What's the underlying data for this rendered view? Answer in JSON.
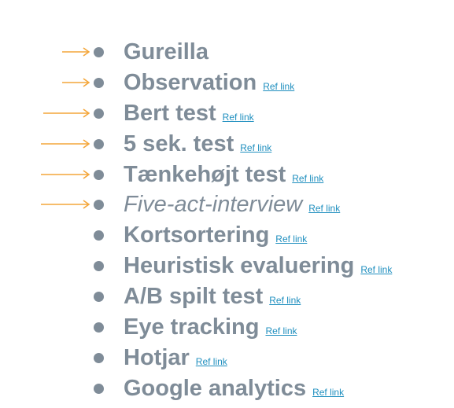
{
  "colors": {
    "text": "#7f8c98",
    "bullet": "#7f8c98",
    "link": "#1f8fbf",
    "arrow": "#f4a63a"
  },
  "items": [
    {
      "label": "Gureilla",
      "italic": false,
      "ref": "",
      "arrow": true
    },
    {
      "label": "Observation",
      "italic": false,
      "ref": "Ref link",
      "arrow": true
    },
    {
      "label": "Bert test",
      "italic": false,
      "ref": "Ref link",
      "arrow": true
    },
    {
      "label": "5 sek. test",
      "italic": false,
      "ref": "Ref link",
      "arrow": true
    },
    {
      "label": "Tænkehøjt test",
      "italic": false,
      "ref": "Ref link",
      "arrow": true
    },
    {
      "label": "Five-act-interview",
      "italic": true,
      "ref": "Ref link",
      "arrow": true
    },
    {
      "label": "Kortsortering",
      "italic": false,
      "ref": "Ref link",
      "arrow": false
    },
    {
      "label": "Heuristisk evaluering",
      "italic": false,
      "ref": "Ref link",
      "arrow": false
    },
    {
      "label": "A/B spilt test",
      "italic": false,
      "ref": "Ref link",
      "arrow": false
    },
    {
      "label": "Eye tracking",
      "italic": false,
      "ref": "Ref link",
      "arrow": false
    },
    {
      "label": "Hotjar",
      "italic": false,
      "ref": "Ref link",
      "arrow": false
    },
    {
      "label": "Google analytics",
      "italic": false,
      "ref": "Ref link",
      "arrow": false
    }
  ]
}
